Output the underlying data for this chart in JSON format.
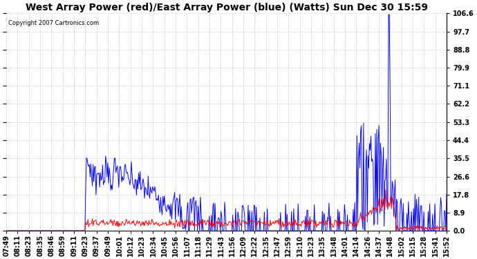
{
  "title": "West Array Power (red)/East Array Power (blue) (Watts) Sun Dec 30 15:59",
  "copyright": "Copyright 2007 Cartronics.com",
  "ytick_vals": [
    0.0,
    8.9,
    17.8,
    26.6,
    35.5,
    44.4,
    53.3,
    62.2,
    71.1,
    79.9,
    88.8,
    97.7,
    106.6
  ],
  "ymin": 0.0,
  "ymax": 106.6,
  "xtick_labels": [
    "07:49",
    "08:11",
    "08:23",
    "08:35",
    "08:46",
    "08:59",
    "09:11",
    "09:23",
    "09:37",
    "09:49",
    "10:01",
    "10:12",
    "10:23",
    "10:34",
    "10:45",
    "10:56",
    "11:07",
    "11:18",
    "11:29",
    "11:43",
    "11:56",
    "12:09",
    "12:22",
    "12:35",
    "12:47",
    "12:59",
    "13:10",
    "13:23",
    "13:35",
    "13:48",
    "14:01",
    "14:14",
    "14:26",
    "14:37",
    "14:48",
    "15:02",
    "15:15",
    "15:28",
    "15:41",
    "15:52"
  ],
  "background_color": "#ffffff",
  "plot_bg_color": "#ffffff",
  "grid_color": "#bbbbbb",
  "line_color_blue": "#0000ff",
  "line_color_red": "#ff0000",
  "title_fontsize": 10,
  "tick_fontsize": 7,
  "xmin": 0,
  "xmax": 39
}
